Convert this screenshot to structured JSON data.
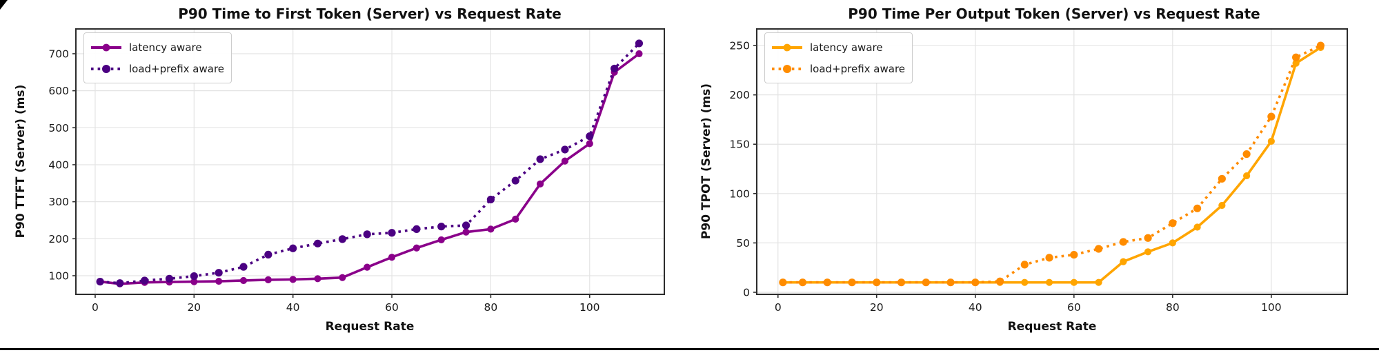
{
  "page": {
    "background": "#ffffff",
    "bottom_rule_color": "#000000"
  },
  "chart_data": [
    {
      "type": "line",
      "title": "P90 Time to First Token (Server) vs Request Rate",
      "xlabel": "Request Rate",
      "ylabel": "P90 TTFT (Server) (ms)",
      "x": [
        1,
        5,
        10,
        15,
        20,
        25,
        30,
        35,
        40,
        45,
        50,
        55,
        60,
        65,
        70,
        75,
        80,
        85,
        90,
        95,
        100,
        105,
        110
      ],
      "series": [
        {
          "name": "latency aware",
          "style": "solid",
          "color": "#8A008A",
          "values": [
            84,
            78,
            82,
            83,
            84,
            85,
            87,
            89,
            90,
            92,
            95,
            123,
            150,
            175,
            197,
            218,
            226,
            253,
            348,
            410,
            457,
            650,
            700
          ]
        },
        {
          "name": "load+prefix aware",
          "style": "dotted",
          "color": "#4B0082",
          "values": [
            84,
            80,
            87,
            92,
            99,
            108,
            124,
            157,
            174,
            187,
            199,
            212,
            216,
            226,
            233,
            236,
            306,
            357,
            415,
            441,
            477,
            660,
            728
          ]
        }
      ],
      "xticks": [
        0,
        20,
        40,
        60,
        80,
        100
      ],
      "yticks": [
        100,
        200,
        300,
        400,
        500,
        600,
        700
      ],
      "xlim": [
        -3.9,
        115.1
      ],
      "ylim": [
        49.7,
        767
      ],
      "grid": true,
      "legend_position": "upper left"
    },
    {
      "type": "line",
      "title": "P90 Time Per Output Token (Server) vs Request Rate",
      "xlabel": "Request Rate",
      "ylabel": "P90 TPOT (Server) (ms)",
      "x": [
        1,
        5,
        10,
        15,
        20,
        25,
        30,
        35,
        40,
        45,
        50,
        55,
        60,
        65,
        70,
        75,
        80,
        85,
        90,
        95,
        100,
        105,
        110
      ],
      "series": [
        {
          "name": "latency aware",
          "style": "solid",
          "color": "#FFA500",
          "values": [
            10,
            10,
            10,
            10,
            10,
            10,
            10,
            10,
            10,
            10,
            10,
            10,
            10,
            10,
            31,
            41,
            50,
            66,
            88,
            118,
            153,
            232,
            248
          ]
        },
        {
          "name": "load+prefix aware",
          "style": "dotted",
          "color": "#FF8C00",
          "values": [
            10,
            10,
            10,
            10,
            10,
            10,
            10,
            10,
            10,
            11,
            28,
            35,
            38,
            44,
            51,
            55,
            70,
            85,
            115,
            140,
            178,
            238,
            250
          ]
        }
      ],
      "xticks": [
        0,
        20,
        40,
        60,
        80,
        100
      ],
      "yticks": [
        0,
        50,
        100,
        150,
        200,
        250
      ],
      "xlim": [
        -4.3,
        115.4
      ],
      "ylim": [
        -2.1,
        266.8
      ],
      "grid": true,
      "legend_position": "upper left"
    }
  ]
}
